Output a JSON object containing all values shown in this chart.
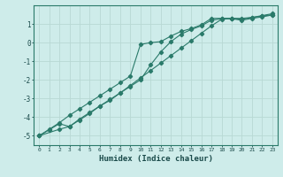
{
  "xlabel": "Humidex (Indice chaleur)",
  "bg_color": "#ceecea",
  "grid_color": "#b8d8d4",
  "line_color": "#2a7a6a",
  "spine_color": "#2a7a6a",
  "xlim": [
    -0.5,
    23.5
  ],
  "ylim": [
    -5.5,
    2.0
  ],
  "yticks": [
    1,
    0,
    -1,
    -2,
    -3,
    -4,
    -5
  ],
  "xticks": [
    0,
    1,
    2,
    3,
    4,
    5,
    6,
    7,
    8,
    9,
    10,
    11,
    12,
    13,
    14,
    15,
    16,
    17,
    18,
    19,
    20,
    21,
    22,
    23
  ],
  "line1_x": [
    0,
    1,
    2,
    3,
    4,
    5,
    6,
    7,
    8,
    9,
    10,
    11,
    12,
    13,
    14,
    15,
    16,
    17,
    18,
    19,
    20,
    21,
    22,
    23
  ],
  "line1_y": [
    -5.0,
    -4.65,
    -4.3,
    -3.9,
    -3.55,
    -3.2,
    -2.85,
    -2.5,
    -2.15,
    -1.8,
    -0.1,
    0.0,
    0.05,
    0.35,
    0.6,
    0.75,
    0.95,
    1.3,
    1.3,
    1.3,
    1.25,
    1.35,
    1.45,
    1.55
  ],
  "line2_x": [
    0,
    2,
    3,
    4,
    5,
    6,
    7,
    8,
    9,
    10,
    11,
    12,
    13,
    14,
    15,
    16,
    17,
    18,
    19,
    20,
    21,
    22,
    23
  ],
  "line2_y": [
    -5.0,
    -4.65,
    -4.5,
    -4.1,
    -3.75,
    -3.4,
    -3.1,
    -2.7,
    -2.3,
    -1.9,
    -1.5,
    -1.1,
    -0.7,
    -0.3,
    0.1,
    0.5,
    0.9,
    1.25,
    1.3,
    1.3,
    1.35,
    1.42,
    1.5
  ],
  "line3_x": [
    0,
    1,
    2,
    3,
    4,
    5,
    6,
    7,
    8,
    9,
    10,
    11,
    12,
    13,
    14,
    15,
    16,
    17,
    18,
    19,
    20,
    21,
    22,
    23
  ],
  "line3_y": [
    -5.0,
    -4.68,
    -4.35,
    -4.5,
    -4.15,
    -3.8,
    -3.4,
    -3.05,
    -2.7,
    -2.35,
    -2.0,
    -1.2,
    -0.5,
    0.05,
    0.45,
    0.7,
    0.9,
    1.2,
    1.28,
    1.28,
    1.2,
    1.3,
    1.38,
    1.48
  ]
}
